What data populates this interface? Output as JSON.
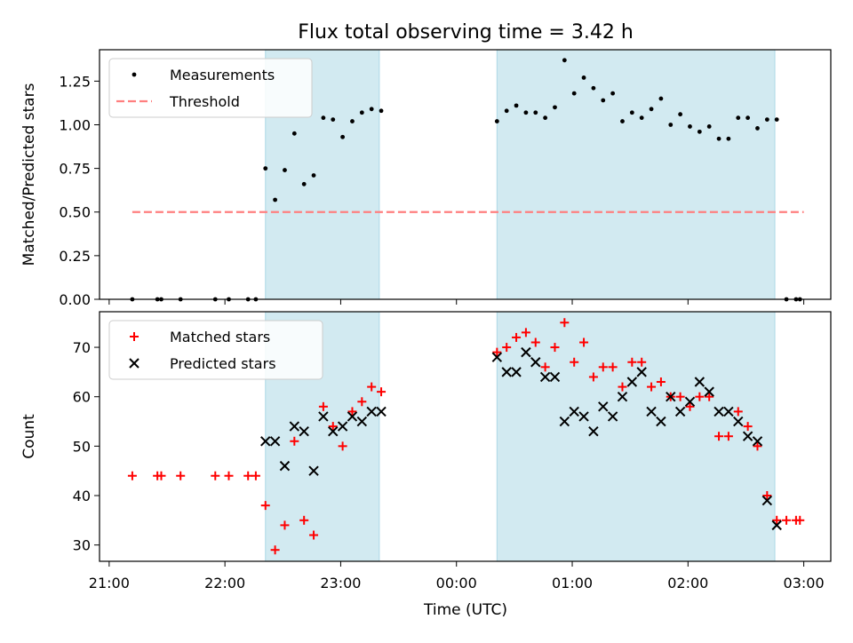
{
  "figure": {
    "title": "Flux total observing time = 3.42 h",
    "xlabel": "Time (UTC)",
    "x_ticks": [
      "21:00",
      "22:00",
      "23:00",
      "00:00",
      "01:00",
      "02:00",
      "03:00"
    ],
    "colors": {
      "measure": "#000000",
      "threshold": "#ff7f7f",
      "matched": "#ff0000",
      "predicted": "#000000",
      "span": "#add8e6"
    }
  },
  "chart_data": [
    {
      "type": "scatter",
      "ylabel": "Matched/Predicted stars",
      "y_ticks": [
        "0.00",
        "0.25",
        "0.50",
        "0.75",
        "1.00",
        "1.25"
      ],
      "ylim": [
        0,
        1.43
      ],
      "xlim": [
        "20:55",
        "03:14"
      ],
      "highlight_spans": [
        [
          "22:21",
          "23:20"
        ],
        [
          "00:21",
          "02:45"
        ]
      ],
      "legend": {
        "position": "top-left",
        "entries": [
          "Measurements",
          "Threshold"
        ]
      },
      "threshold": {
        "name": "Threshold",
        "value": 0.5,
        "x_range": [
          "21:12",
          "03:00"
        ]
      },
      "series": [
        {
          "name": "Measurements",
          "x": [
            "21:12",
            "21:25",
            "21:27",
            "21:37",
            "21:55",
            "22:02",
            "22:12",
            "22:16",
            "22:21",
            "22:26",
            "22:31",
            "22:36",
            "22:41",
            "22:46",
            "22:51",
            "22:56",
            "23:01",
            "23:06",
            "23:11",
            "23:16",
            "23:21",
            "00:21",
            "00:26",
            "00:31",
            "00:36",
            "00:41",
            "00:46",
            "00:51",
            "00:56",
            "01:01",
            "01:06",
            "01:11",
            "01:16",
            "01:21",
            "01:26",
            "01:31",
            "01:36",
            "01:41",
            "01:46",
            "01:51",
            "01:56",
            "02:01",
            "02:06",
            "02:11",
            "02:16",
            "02:21",
            "02:26",
            "02:31",
            "02:36",
            "02:41",
            "02:46",
            "02:51",
            "02:56",
            "02:58"
          ],
          "y": [
            0,
            0,
            0,
            0,
            0,
            0,
            0,
            0,
            0.75,
            0.57,
            0.74,
            0.95,
            0.66,
            0.71,
            1.04,
            1.03,
            0.93,
            1.02,
            1.07,
            1.09,
            1.08,
            1.02,
            1.08,
            1.11,
            1.07,
            1.07,
            1.04,
            1.1,
            1.37,
            1.18,
            1.27,
            1.21,
            1.14,
            1.18,
            1.02,
            1.07,
            1.04,
            1.09,
            1.15,
            1.0,
            1.06,
            0.99,
            0.96,
            0.99,
            0.92,
            0.92,
            1.04,
            1.04,
            0.98,
            1.03,
            1.03,
            0,
            0,
            0
          ]
        }
      ]
    },
    {
      "type": "scatter",
      "ylabel": "Count",
      "y_ticks": [
        "30",
        "40",
        "50",
        "60",
        "70"
      ],
      "ylim": [
        26.7,
        77.2
      ],
      "xlim": [
        "20:55",
        "03:14"
      ],
      "highlight_spans": [
        [
          "22:21",
          "23:20"
        ],
        [
          "00:21",
          "02:45"
        ]
      ],
      "legend": {
        "position": "top-left",
        "entries": [
          "Matched stars",
          "Predicted stars"
        ]
      },
      "series": [
        {
          "name": "Matched stars",
          "marker": "+",
          "x": [
            "21:12",
            "21:25",
            "21:27",
            "21:37",
            "21:55",
            "22:02",
            "22:12",
            "22:16",
            "22:21",
            "22:26",
            "22:31",
            "22:36",
            "22:41",
            "22:46",
            "22:51",
            "22:56",
            "23:01",
            "23:06",
            "23:11",
            "23:16",
            "23:21",
            "00:21",
            "00:26",
            "00:31",
            "00:36",
            "00:41",
            "00:46",
            "00:51",
            "00:56",
            "01:01",
            "01:06",
            "01:11",
            "01:16",
            "01:21",
            "01:26",
            "01:31",
            "01:36",
            "01:41",
            "01:46",
            "01:51",
            "01:56",
            "02:01",
            "02:06",
            "02:11",
            "02:16",
            "02:21",
            "02:26",
            "02:31",
            "02:36",
            "02:41",
            "02:46",
            "02:51",
            "02:56",
            "02:58"
          ],
          "y": [
            44,
            44,
            44,
            44,
            44,
            44,
            44,
            44,
            38,
            29,
            34,
            51,
            35,
            32,
            58,
            54,
            50,
            57,
            59,
            62,
            61,
            69,
            70,
            72,
            73,
            71,
            66,
            70,
            75,
            67,
            71,
            64,
            66,
            66,
            62,
            67,
            67,
            62,
            63,
            60,
            60,
            58,
            60,
            60,
            52,
            52,
            57,
            54,
            50,
            40,
            35,
            35,
            35,
            35
          ]
        },
        {
          "name": "Predicted stars",
          "marker": "x",
          "x": [
            "22:21",
            "22:26",
            "22:31",
            "22:36",
            "22:41",
            "22:46",
            "22:51",
            "22:56",
            "23:01",
            "23:06",
            "23:11",
            "23:16",
            "23:21",
            "00:21",
            "00:26",
            "00:31",
            "00:36",
            "00:41",
            "00:46",
            "00:51",
            "00:56",
            "01:01",
            "01:06",
            "01:11",
            "01:16",
            "01:21",
            "01:26",
            "01:31",
            "01:36",
            "01:41",
            "01:46",
            "01:51",
            "01:56",
            "02:01",
            "02:06",
            "02:11",
            "02:16",
            "02:21",
            "02:26",
            "02:31",
            "02:36",
            "02:41",
            "02:46"
          ],
          "y": [
            51,
            51,
            46,
            54,
            53,
            45,
            56,
            53,
            54,
            56,
            55,
            57,
            57,
            68,
            65,
            65,
            69,
            67,
            64,
            64,
            55,
            57,
            56,
            53,
            58,
            56,
            60,
            63,
            65,
            57,
            55,
            60,
            57,
            59,
            63,
            61,
            57,
            57,
            55,
            52,
            51,
            39,
            34
          ]
        }
      ]
    }
  ]
}
